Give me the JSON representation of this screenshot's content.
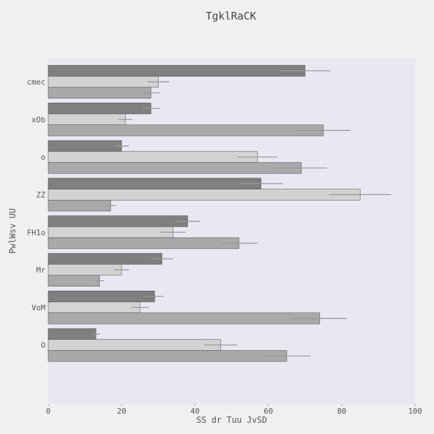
{
  "chart_data": {
    "type": "bar",
    "orientation": "horizontal",
    "title": "TgklRaCK",
    "xlabel": "SS dr Tuu JvSD",
    "ylabel": "PwlWsv UU",
    "xlim": [
      0,
      100
    ],
    "xticks": [
      0,
      20,
      40,
      60,
      80,
      100
    ],
    "grid": false,
    "legend": "none",
    "categories": [
      "cmec",
      "xOb",
      "o",
      "ZZ",
      "FH1o",
      "Mr",
      "VoM",
      "O"
    ],
    "series": [
      {
        "color": "#7f7f7f",
        "values": [
          70,
          28,
          20,
          58,
          38,
          31,
          29,
          13
        ],
        "errors": [
          7,
          2.5,
          2,
          6,
          3.5,
          3,
          2.5,
          1.2
        ]
      },
      {
        "color": "#d3d3d3",
        "values": [
          30,
          21,
          57,
          85,
          34,
          20,
          25,
          47
        ],
        "errors": [
          3,
          2,
          5.5,
          8.5,
          3.5,
          2,
          2.5,
          4.5
        ]
      },
      {
        "color": "#a9a9a9",
        "values": [
          28,
          75,
          69,
          17,
          52,
          14,
          74,
          65
        ],
        "errors": [
          2.5,
          7.5,
          7,
          1.5,
          5,
          1.2,
          7.5,
          6.5
        ]
      }
    ]
  }
}
